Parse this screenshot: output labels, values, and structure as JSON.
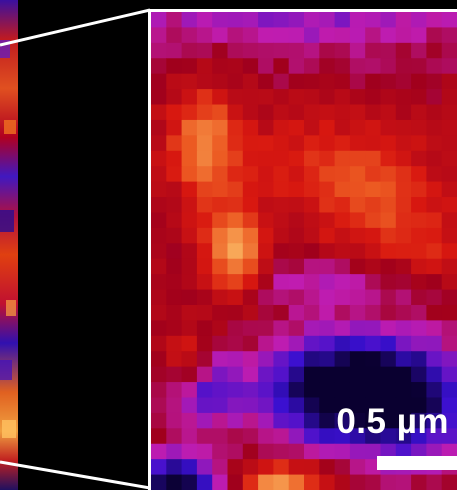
{
  "image": {
    "kind": "false-color microscopy inset with zoomed region",
    "colormap": [
      "#0a0030",
      "#3a10d0",
      "#c01cb0",
      "#b0001a",
      "#e03010",
      "#f07a30",
      "#ffd070"
    ],
    "background_color": "#000000",
    "frame_color": "#ffffff"
  },
  "scale_bar": {
    "label": "0.5 µm"
  }
}
